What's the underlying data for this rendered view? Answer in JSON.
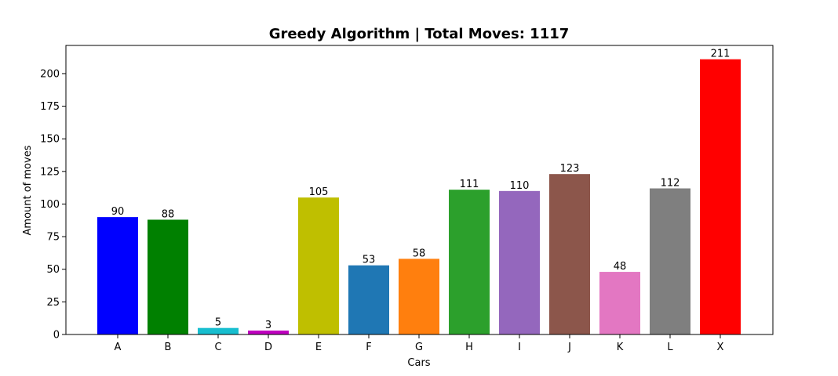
{
  "chart_data": {
    "type": "bar",
    "title": "Greedy Algorithm | Total Moves: 1117",
    "xlabel": "Cars",
    "ylabel": "Amount of moves",
    "categories": [
      "A",
      "B",
      "C",
      "D",
      "E",
      "F",
      "G",
      "H",
      "I",
      "J",
      "K",
      "L",
      "X"
    ],
    "values": [
      90,
      88,
      5,
      3,
      105,
      53,
      58,
      111,
      110,
      123,
      48,
      112,
      211
    ],
    "colors": [
      "#0000ff",
      "#008000",
      "#17becf",
      "#bf00bf",
      "#bfbf00",
      "#1f77b4",
      "#ff7f0e",
      "#2ca02c",
      "#9467bd",
      "#8c564b",
      "#e377c2",
      "#7f7f7f",
      "#ff0000"
    ],
    "ylim": [
      0,
      221.6
    ],
    "yticks": [
      0,
      25,
      50,
      75,
      100,
      125,
      150,
      175,
      200
    ],
    "grid": false,
    "legend": "none"
  }
}
